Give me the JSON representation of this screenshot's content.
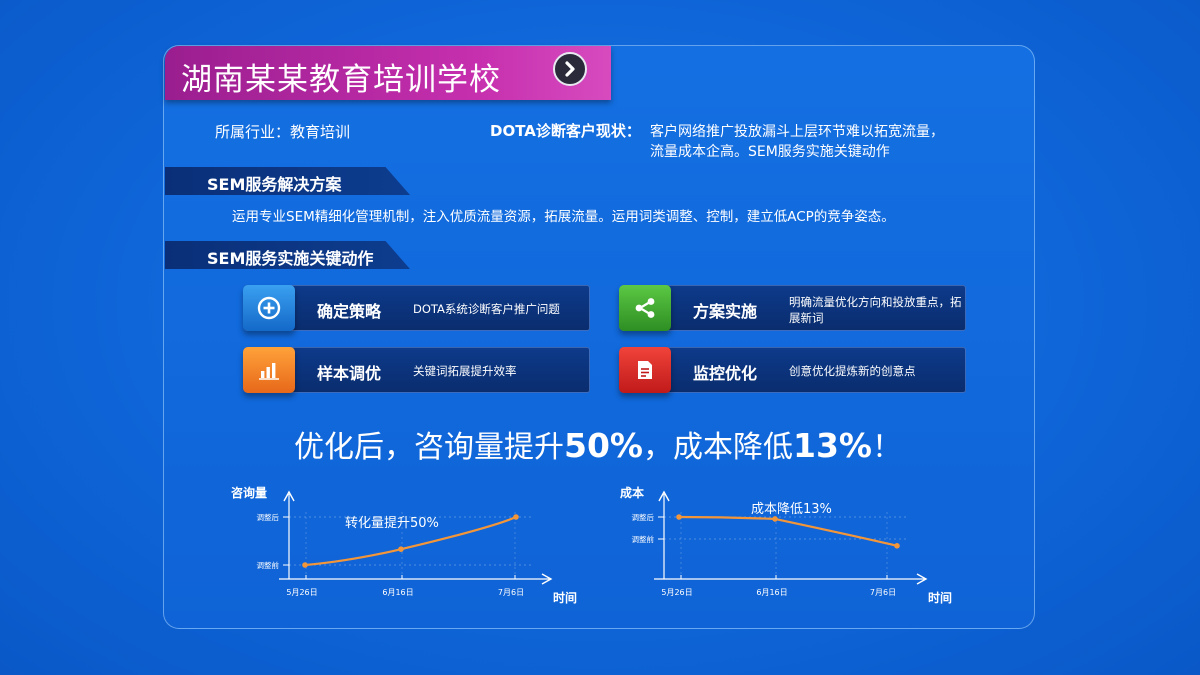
{
  "title": "湖南某某教育培训学校",
  "industry": "所属行业：教育培训",
  "diagnosis": {
    "label": "DOTA诊断客户现状：",
    "line1": "客户网络推广投放漏斗上层环节难以拓宽流量，",
    "line2": "流量成本企高。SEM服务实施关键动作"
  },
  "solution": {
    "heading": "SEM服务解决方案",
    "text": "运用专业SEM精细化管理机制，注入优质流量资源，拓展流量。运用词类调整、控制，建立低ACP的竞争姿态。"
  },
  "actions": {
    "heading": "SEM服务实施关键动作",
    "items": [
      {
        "label": "确定策略",
        "text": "DOTA系统诊断客户推广问题",
        "icon": "plus-circle-icon",
        "color": "#1e7fe0"
      },
      {
        "label": "方案实施",
        "text": "明确流量优化方向和投放重点，拓展新词",
        "icon": "share-icon",
        "color": "#3aa52e"
      },
      {
        "label": "样本调优",
        "text": "关键词拓展提升效率",
        "icon": "bar-chart-icon",
        "color": "#f07d22"
      },
      {
        "label": "监控优化",
        "text": "创意优化提炼新的创意点",
        "icon": "document-icon",
        "color": "#d9261f"
      }
    ]
  },
  "headline": {
    "p1": "优化后，咨询量提升",
    "v1": "50%",
    "p2": "，成本降低",
    "v2": "13%",
    "p3": "！"
  },
  "chart_data": [
    {
      "type": "line",
      "ylabel": "咨询量",
      "xlabel": "时间",
      "annotation": "转化量提升50%",
      "categories": [
        "5月26日",
        "6月16日",
        "7月6日"
      ],
      "y_ticks": [
        "调整前",
        "调整后"
      ],
      "series": [
        {
          "values": [
            0,
            0.33,
            1.0
          ]
        }
      ],
      "color": "#f3963a"
    },
    {
      "type": "line",
      "ylabel": "成本",
      "xlabel": "时间",
      "annotation": "成本降低13%",
      "categories": [
        "5月26日",
        "6月16日",
        "7月6日"
      ],
      "y_ticks": [
        "调整前",
        "调整后"
      ],
      "series": [
        {
          "values": [
            1.0,
            0.96,
            0.4
          ]
        }
      ],
      "color": "#f3963a"
    }
  ]
}
